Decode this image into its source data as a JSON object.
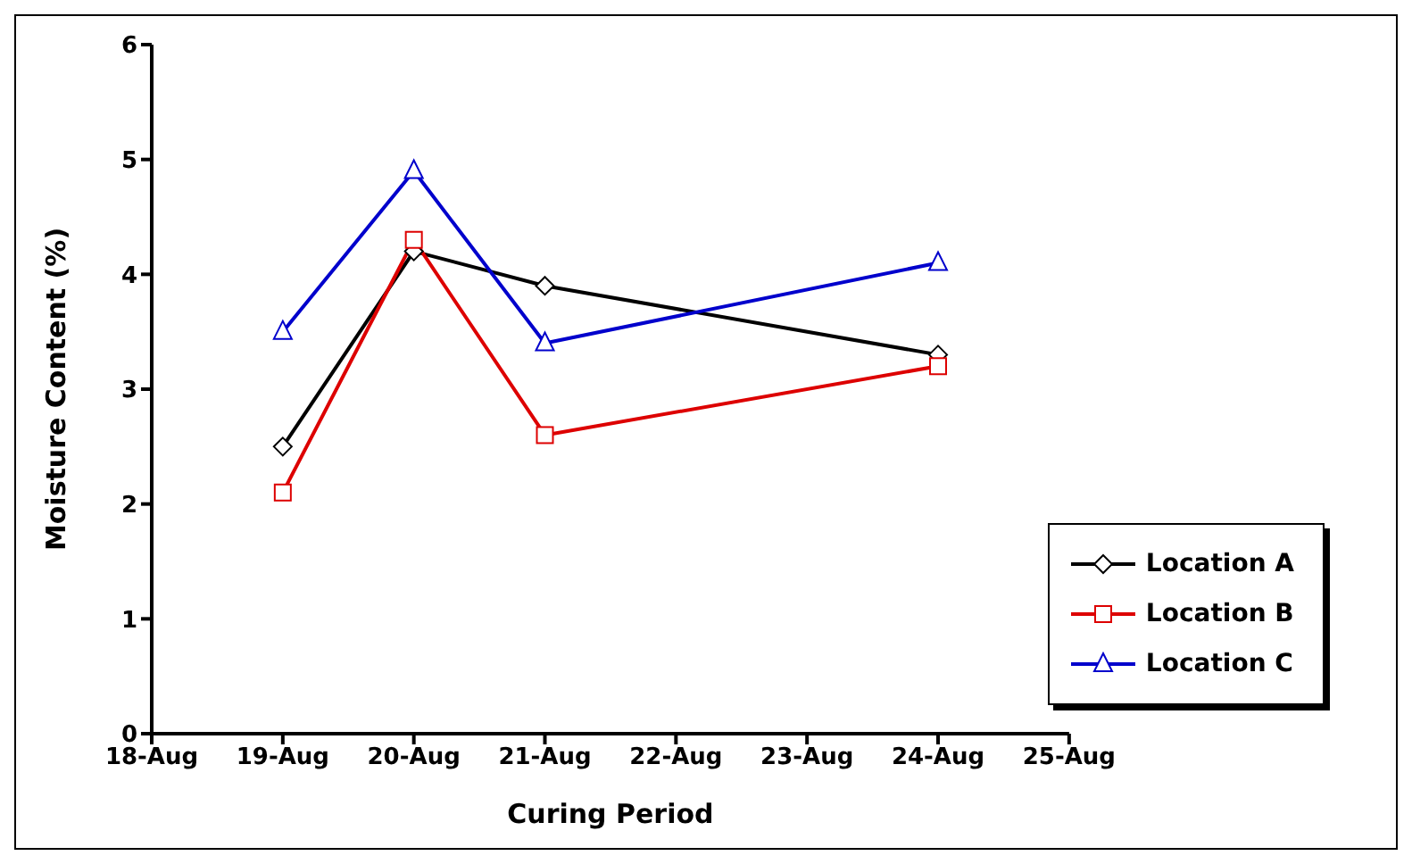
{
  "chart_data": {
    "type": "line",
    "xlabel": "Curing Period",
    "ylabel": "Moisture Content (%)",
    "x": [
      "--08-19",
      "--08-20",
      "--08-21",
      "--08-24"
    ],
    "series": [
      {
        "name": "Location A",
        "color": "#000000",
        "marker": "diamond",
        "values": [
          2.5,
          4.2,
          3.9,
          3.3
        ]
      },
      {
        "name": "Location B",
        "color": "#dd0000",
        "marker": "square",
        "values": [
          2.1,
          4.3,
          2.6,
          3.2
        ]
      },
      {
        "name": "Location C",
        "color": "#0000cc",
        "marker": "triangle",
        "values": [
          3.5,
          4.9,
          3.4,
          4.1
        ]
      }
    ],
    "xlim": [
      "--08-18",
      "--08-25"
    ],
    "xticks": [
      {
        "value": "--08-18",
        "label": "18-Aug"
      },
      {
        "value": "--08-19",
        "label": "19-Aug"
      },
      {
        "value": "--08-20",
        "label": "20-Aug"
      },
      {
        "value": "--08-21",
        "label": "21-Aug"
      },
      {
        "value": "--08-22",
        "label": "22-Aug"
      },
      {
        "value": "--08-23",
        "label": "23-Aug"
      },
      {
        "value": "--08-24",
        "label": "24-Aug"
      },
      {
        "value": "--08-25",
        "label": "25-Aug"
      }
    ],
    "ylim": [
      0,
      6
    ],
    "yticks": [
      0,
      1,
      2,
      3,
      4,
      5,
      6
    ],
    "grid": false,
    "legend": "bottom right",
    "line_style": "solid"
  }
}
